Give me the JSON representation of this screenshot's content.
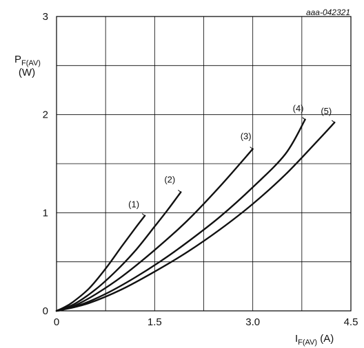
{
  "figure_code": "aaa-042321",
  "chart_data": {
    "type": "line",
    "xlabel": {
      "main": "I",
      "sub": "F(AV)",
      "unit": " (A)"
    },
    "ylabel": {
      "main": "P",
      "sub": "F(AV)",
      "unit": "(W)"
    },
    "xlim": [
      0,
      4.5
    ],
    "ylim": [
      0,
      3
    ],
    "x_ticks": [
      "0",
      "1.5",
      "3.0",
      "4.5"
    ],
    "y_ticks": [
      "0",
      "1",
      "2",
      "3"
    ],
    "x_tick_values": [
      0,
      1.5,
      3.0,
      4.5
    ],
    "y_tick_values": [
      0,
      1,
      2,
      3
    ],
    "grid": true,
    "series": [
      {
        "name": "(1)",
        "x": [
          0,
          0.1,
          0.25,
          0.5,
          0.75,
          1.0,
          1.2,
          1.35
        ],
        "y": [
          0,
          0.03,
          0.09,
          0.23,
          0.43,
          0.66,
          0.84,
          0.97
        ]
      },
      {
        "name": "(2)",
        "x": [
          0,
          0.1,
          0.3,
          0.6,
          0.9,
          1.2,
          1.5,
          1.7,
          1.9
        ],
        "y": [
          0,
          0.02,
          0.08,
          0.22,
          0.4,
          0.61,
          0.86,
          1.03,
          1.21
        ]
      },
      {
        "name": "(3)",
        "x": [
          0,
          0.1,
          0.3,
          0.6,
          1.0,
          1.5,
          2.0,
          2.5,
          3.0
        ],
        "y": [
          0,
          0.015,
          0.06,
          0.17,
          0.35,
          0.62,
          0.92,
          1.27,
          1.65
        ]
      },
      {
        "name": "(4)",
        "x": [
          0,
          0.1,
          0.4,
          0.8,
          1.2,
          1.6,
          2.0,
          2.5,
          3.0,
          3.5,
          3.8
        ],
        "y": [
          0,
          0.015,
          0.07,
          0.19,
          0.34,
          0.51,
          0.7,
          0.96,
          1.26,
          1.6,
          1.95
        ]
      },
      {
        "name": "(5)",
        "x": [
          0,
          0.1,
          0.5,
          1.0,
          1.5,
          2.0,
          2.5,
          3.0,
          3.5,
          4.0,
          4.25
        ],
        "y": [
          0,
          0.012,
          0.08,
          0.22,
          0.4,
          0.6,
          0.83,
          1.09,
          1.39,
          1.74,
          1.92
        ]
      }
    ],
    "series_color": "#111111"
  }
}
